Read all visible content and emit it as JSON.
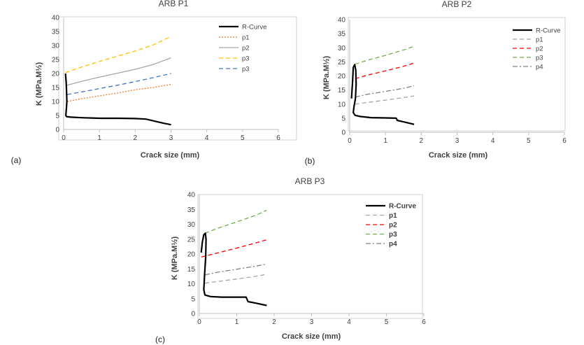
{
  "chart_data": [
    {
      "type": "line",
      "panel_label": "(a)",
      "title": "ARB P1",
      "xlabel": "Crack size (mm)",
      "ylabel": "K (MPa.M½)",
      "xlim": [
        0,
        6
      ],
      "ylim": [
        0,
        40
      ],
      "xticks": [
        "0",
        "1",
        "2",
        "3",
        "4",
        "5",
        "6"
      ],
      "yticks": [
        "0",
        "5",
        "10",
        "15",
        "20",
        "25",
        "30",
        "35",
        "40"
      ],
      "grid": false,
      "legend_position": "top-right",
      "series": [
        {
          "name": "R-Curve",
          "color": "#000000",
          "dash": "solid",
          "x": [
            0.05,
            0.07,
            0.08,
            0.09,
            0.08,
            0.07,
            0.06,
            0.08,
            0.2,
            0.5,
            1.0,
            1.5,
            2.0,
            2.3,
            2.6,
            2.8,
            3.0
          ],
          "y": [
            20.0,
            17.0,
            14.0,
            10.0,
            8.0,
            6.5,
            5.0,
            4.6,
            4.4,
            4.2,
            4.0,
            4.0,
            3.9,
            3.7,
            2.8,
            2.2,
            1.7
          ]
        },
        {
          "name": "p1",
          "color": "#ED7D31",
          "dash": "dot",
          "x": [
            0.1,
            0.5,
            1.0,
            1.5,
            2.0,
            2.5,
            3.0
          ],
          "y": [
            10.0,
            11.0,
            12.0,
            13.0,
            14.2,
            15.0,
            16.1
          ]
        },
        {
          "name": "p2",
          "color": "#A5A5A5",
          "dash": "solid",
          "x": [
            0.1,
            0.5,
            1.0,
            1.5,
            2.0,
            2.5,
            3.0
          ],
          "y": [
            15.8,
            17.2,
            18.7,
            20.1,
            21.5,
            23.2,
            25.6
          ]
        },
        {
          "name": "p3",
          "color": "#FFC000",
          "dash": "dash",
          "x": [
            0.05,
            0.5,
            1.0,
            1.5,
            2.0,
            2.5,
            3.0
          ],
          "y": [
            20.3,
            22.3,
            24.3,
            26.2,
            28.0,
            30.2,
            33.2
          ]
        },
        {
          "name": "p3",
          "color": "#4472C4",
          "dash": "dash",
          "x": [
            0.1,
            0.5,
            1.0,
            1.5,
            2.0,
            2.5,
            3.0
          ],
          "y": [
            12.5,
            13.4,
            14.6,
            15.8,
            17.1,
            18.5,
            20.0
          ]
        }
      ]
    },
    {
      "type": "line",
      "panel_label": "(b)",
      "title": "ARB P2",
      "xlabel": "Crack size (mm)",
      "ylabel": "K (MPa.M½)",
      "xlim": [
        0,
        6
      ],
      "ylim": [
        0,
        40
      ],
      "xticks": [
        "0",
        "1",
        "2",
        "3",
        "4",
        "5",
        "6"
      ],
      "yticks": [
        "0",
        "5",
        "10",
        "15",
        "20",
        "25",
        "30",
        "35",
        "40"
      ],
      "grid": false,
      "legend_position": "top-right",
      "series": [
        {
          "name": "R-Curve",
          "color": "#000000",
          "dash": "solid",
          "x": [
            0.05,
            0.08,
            0.1,
            0.14,
            0.17,
            0.18,
            0.16,
            0.12,
            0.1,
            0.15,
            0.3,
            0.6,
            1.0,
            1.3,
            1.33,
            1.5,
            1.8
          ],
          "y": [
            12.0,
            18.0,
            23.0,
            24.0,
            22.0,
            17.0,
            12.0,
            9.0,
            7.0,
            6.0,
            5.6,
            5.2,
            5.1,
            5.0,
            4.2,
            3.7,
            2.8
          ]
        },
        {
          "name": "p1",
          "color": "#A5A5A5",
          "dash": "dash",
          "x": [
            0.15,
            0.5,
            1.0,
            1.5,
            1.8
          ],
          "y": [
            10.0,
            10.6,
            11.4,
            12.3,
            12.9
          ]
        },
        {
          "name": "p2",
          "color": "#FF0000",
          "dash": "dash",
          "x": [
            0.15,
            0.5,
            1.0,
            1.5,
            1.8
          ],
          "y": [
            19.0,
            20.3,
            21.8,
            23.4,
            24.6
          ]
        },
        {
          "name": "p3",
          "color": "#70AD47",
          "dash": "dash",
          "x": [
            0.15,
            0.5,
            1.0,
            1.5,
            1.8
          ],
          "y": [
            24.2,
            25.6,
            27.3,
            29.2,
            30.5
          ]
        },
        {
          "name": "p4",
          "color": "#7F7F7F",
          "dash": "dashdot",
          "x": [
            0.15,
            0.5,
            1.0,
            1.5,
            1.8
          ],
          "y": [
            12.5,
            13.5,
            14.5,
            15.6,
            16.5
          ]
        }
      ]
    },
    {
      "type": "line",
      "panel_label": "(c)",
      "title": "ARB P3",
      "xlabel": "Crack size (mm)",
      "ylabel": "K (MPa.M½)",
      "xlim": [
        0,
        6
      ],
      "ylim": [
        0,
        40
      ],
      "xticks": [
        "0",
        "1",
        "2",
        "3",
        "4",
        "5",
        "6"
      ],
      "yticks": [
        "0",
        "5",
        "10",
        "15",
        "20",
        "25",
        "30",
        "35",
        "40"
      ],
      "grid": false,
      "legend_position": "top-right",
      "series": [
        {
          "name": "R-Curve",
          "color": "#000000",
          "dash": "solid",
          "x": [
            0.05,
            0.08,
            0.12,
            0.16,
            0.18,
            0.17,
            0.14,
            0.12,
            0.15,
            0.3,
            0.6,
            1.0,
            1.25,
            1.3,
            1.5,
            1.8
          ],
          "y": [
            20.5,
            24.0,
            26.5,
            27.0,
            25.0,
            19.0,
            13.0,
            8.0,
            6.2,
            5.7,
            5.5,
            5.5,
            5.5,
            4.0,
            3.5,
            2.7
          ]
        },
        {
          "name": "p1",
          "color": "#A5A5A5",
          "dash": "dash",
          "x": [
            0.15,
            0.5,
            1.0,
            1.5,
            1.8
          ],
          "y": [
            10.2,
            10.8,
            11.6,
            12.5,
            13.2
          ]
        },
        {
          "name": "p2",
          "color": "#FF0000",
          "dash": "dash",
          "x": [
            0.05,
            0.5,
            1.0,
            1.5,
            1.8
          ],
          "y": [
            19.0,
            20.4,
            22.0,
            23.7,
            24.8
          ]
        },
        {
          "name": "p3",
          "color": "#70AD47",
          "dash": "dash",
          "x": [
            0.15,
            0.5,
            1.0,
            1.5,
            1.8
          ],
          "y": [
            27.0,
            28.7,
            30.8,
            33.0,
            34.7
          ]
        },
        {
          "name": "p4",
          "color": "#7F7F7F",
          "dash": "dashdot",
          "x": [
            0.15,
            0.5,
            1.0,
            1.5,
            1.8
          ],
          "y": [
            13.0,
            13.9,
            14.9,
            15.9,
            16.6
          ]
        }
      ]
    }
  ]
}
